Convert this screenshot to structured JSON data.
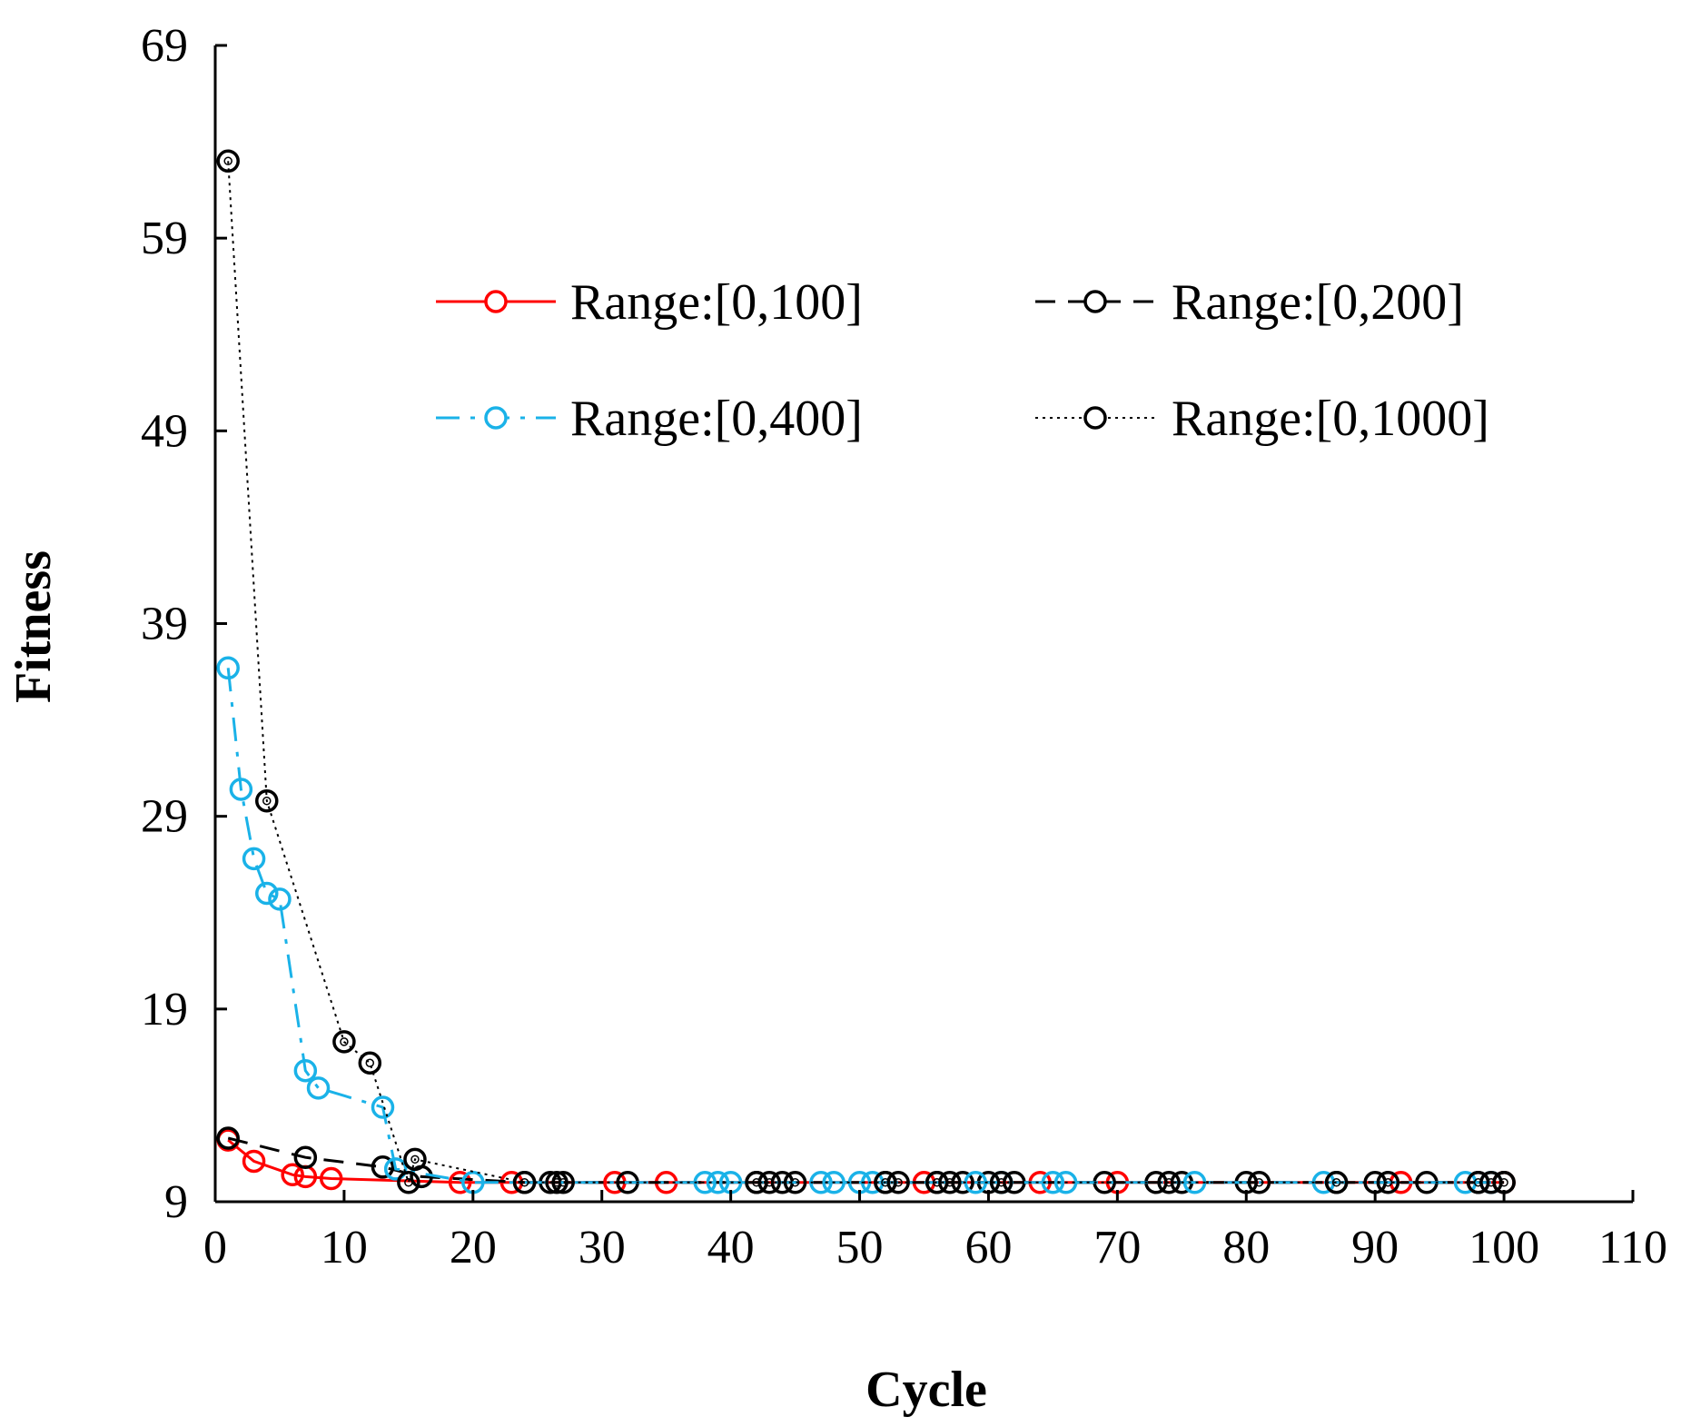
{
  "chart_data": {
    "type": "line",
    "title": "",
    "xlabel": "Cycle",
    "ylabel": "Fitness",
    "xlim": [
      0,
      110
    ],
    "ylim": [
      9,
      69
    ],
    "xticks": [
      0,
      10,
      20,
      30,
      40,
      50,
      60,
      70,
      80,
      90,
      100,
      110
    ],
    "yticks": [
      9,
      19,
      29,
      39,
      49,
      59,
      69
    ],
    "xtick_labels": [
      "0",
      "10",
      "20",
      "30",
      "40",
      "50",
      "60",
      "70",
      "80",
      "90",
      "100",
      "110"
    ],
    "ytick_labels": [
      "9",
      "19",
      "29",
      "39",
      "49",
      "59",
      "69"
    ],
    "legend_position": "top-right",
    "series": [
      {
        "name": "Range:[0,100]",
        "color": "#ff0000",
        "dash": "solid",
        "x": [
          1,
          3,
          6,
          7,
          9,
          19,
          23,
          31,
          35,
          55,
          64,
          70,
          92,
          100
        ],
        "y": [
          12.2,
          11.1,
          10.4,
          10.3,
          10.2,
          10.0,
          10.0,
          10.0,
          10.0,
          10.0,
          10.0,
          10.0,
          10.0,
          10.0
        ]
      },
      {
        "name": "Range:[0,200]",
        "color": "#000000",
        "dash": "dash",
        "x": [
          1,
          7,
          13,
          16,
          24,
          26,
          32,
          42,
          44,
          52,
          56,
          58,
          60,
          62,
          69,
          73,
          75,
          80,
          87,
          90,
          94,
          98,
          100
        ],
        "y": [
          12.3,
          11.3,
          10.8,
          10.3,
          10.0,
          10.0,
          10.0,
          10.0,
          10.0,
          10.0,
          10.0,
          10.0,
          10.0,
          10.0,
          10.0,
          10.0,
          10.0,
          10.0,
          10.0,
          10.0,
          10.0,
          10.0,
          10.0
        ]
      },
      {
        "name": "Range:[0,400]",
        "color": "#1ab2e8",
        "dash": "dashdot",
        "x": [
          1,
          2,
          3,
          4,
          5,
          7,
          8,
          13,
          14,
          20,
          38,
          39,
          40,
          47,
          48,
          50,
          51,
          59,
          61,
          65,
          66,
          76,
          86,
          97,
          99
        ],
        "y": [
          36.7,
          30.4,
          26.8,
          25.0,
          24.7,
          15.8,
          14.9,
          13.9,
          10.7,
          10.0,
          10.0,
          10.0,
          10.0,
          10.0,
          10.0,
          10.0,
          10.0,
          10.0,
          10.0,
          10.0,
          10.0,
          10.0,
          10.0,
          10.0,
          10.0
        ]
      },
      {
        "name": "Range:[0,1000]",
        "color": "#000000",
        "dash": "dot",
        "x": [
          1,
          4,
          10,
          12,
          15,
          15.5,
          24,
          26.5,
          27,
          42,
          43,
          45,
          52,
          53,
          56,
          57,
          61,
          74,
          81,
          87,
          91,
          98,
          99,
          100
        ],
        "y": [
          63.0,
          29.8,
          17.3,
          16.2,
          10.0,
          11.2,
          10.0,
          10.0,
          10.0,
          10.0,
          10.0,
          10.0,
          10.0,
          10.0,
          10.0,
          10.0,
          10.0,
          10.0,
          10.0,
          10.0,
          10.0,
          10.0,
          10.0,
          10.0
        ]
      }
    ]
  }
}
